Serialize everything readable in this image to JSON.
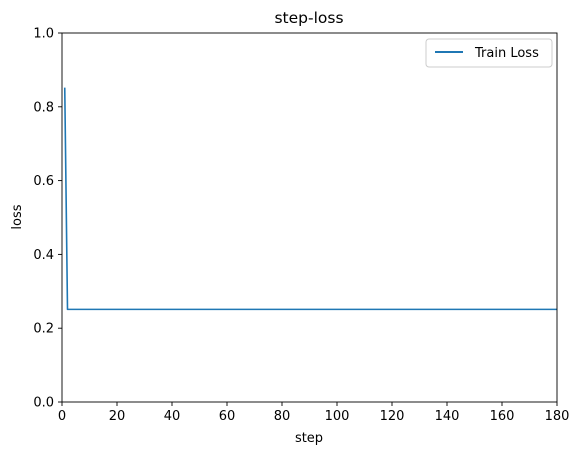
{
  "chart_data": {
    "type": "line",
    "title": "step-loss",
    "xlabel": "step",
    "ylabel": "loss",
    "xlim": [
      0,
      180
    ],
    "ylim": [
      0.0,
      1.0
    ],
    "xticks": [
      0,
      20,
      40,
      60,
      80,
      100,
      120,
      140,
      160,
      180
    ],
    "xtick_labels": [
      "0",
      "20",
      "40",
      "60",
      "80",
      "100",
      "120",
      "140",
      "160",
      "180"
    ],
    "yticks": [
      0.0,
      0.2,
      0.4,
      0.6,
      0.8,
      1.0
    ],
    "ytick_labels": [
      "0.0",
      "0.2",
      "0.4",
      "0.6",
      "0.8",
      "1.0"
    ],
    "grid": false,
    "legend_position": "top-right",
    "series": [
      {
        "name": "Train Loss",
        "color": "#1f77b4",
        "x": [
          1,
          2,
          3,
          180
        ],
        "y": [
          0.852,
          0.251,
          0.251,
          0.251
        ]
      }
    ]
  }
}
